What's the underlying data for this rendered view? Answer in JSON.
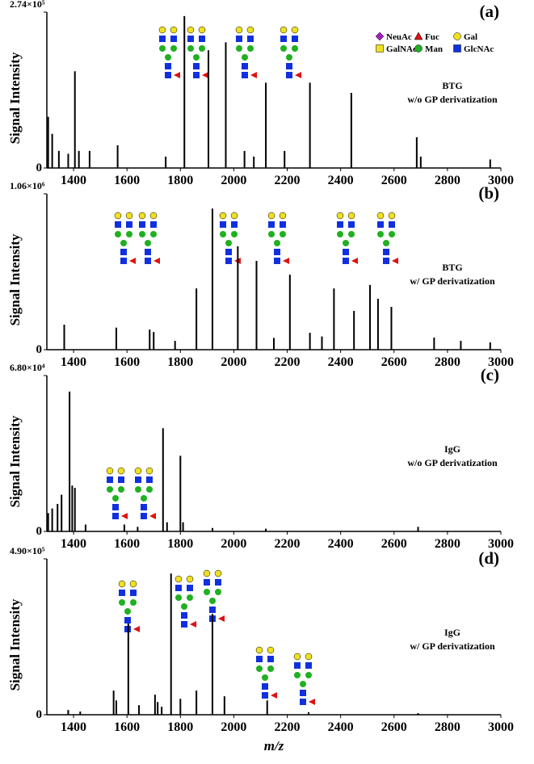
{
  "chart_data": [
    {
      "type": "stem",
      "panel_label": "(a)",
      "ylabel": "Signal Intensity",
      "annotation": [
        "BTG",
        "w/o GP derivatization"
      ],
      "legend": [
        {
          "name": "NeuAc",
          "color": "#a020c0",
          "shape": "diamond"
        },
        {
          "name": "Fuc",
          "color": "#e01010",
          "shape": "triangle"
        },
        {
          "name": "Gal",
          "color": "#f0e020",
          "shape": "circle"
        },
        {
          "name": "GalNAc",
          "color": "#f0e020",
          "shape": "square"
        },
        {
          "name": "Man",
          "color": "#20b020",
          "shape": "circle"
        },
        {
          "name": "GlcNAc",
          "color": "#1030e0",
          "shape": "square"
        }
      ],
      "color": "#000000",
      "xlim": [
        1300,
        3000
      ],
      "ylim": [
        0,
        274000
      ],
      "xticks": [
        1400,
        1600,
        1800,
        2000,
        2200,
        2400,
        2600,
        2800,
        3000
      ],
      "yticks": [
        0,
        {
          "value": 274000,
          "label": "2.74×10⁵"
        }
      ],
      "x": [
        1305,
        1320,
        1345,
        1380,
        1405,
        1420,
        1460,
        1565,
        1745,
        1815,
        1905,
        1970,
        2040,
        2075,
        2120,
        2190,
        2285,
        2440,
        2685,
        2700,
        2960
      ],
      "values": [
        90000,
        60000,
        30000,
        25000,
        170000,
        30000,
        30000,
        40000,
        20000,
        267000,
        207000,
        221000,
        30000,
        20000,
        150000,
        30000,
        150000,
        132000,
        54000,
        20000,
        15000
      ]
    },
    {
      "type": "stem",
      "panel_label": "(b)",
      "ylabel": "Signal Intensity",
      "annotation": [
        "BTG",
        "w/ GP derivatization"
      ],
      "color": "#000000",
      "xlim": [
        1300,
        3000
      ],
      "ylim": [
        0,
        1060000
      ],
      "xticks": [
        1400,
        1600,
        1800,
        2000,
        2200,
        2400,
        2600,
        2800,
        3000
      ],
      "yticks": [
        0,
        {
          "value": 1060000,
          "label": "1.06×10⁶"
        }
      ],
      "x": [
        1365,
        1560,
        1685,
        1700,
        1780,
        1860,
        1920,
        2015,
        2085,
        2150,
        2210,
        2285,
        2330,
        2375,
        2450,
        2510,
        2540,
        2590,
        2750,
        2850,
        2960
      ],
      "values": [
        170000,
        150000,
        137000,
        120000,
        60000,
        417000,
        960000,
        703000,
        604000,
        80000,
        510000,
        115000,
        90000,
        417000,
        264000,
        440000,
        346000,
        291000,
        82000,
        60000,
        50000
      ]
    },
    {
      "type": "stem",
      "panel_label": "(c)",
      "ylabel": "Signal Intensity",
      "annotation": [
        "IgG",
        "w/o GP derivatization"
      ],
      "color": "#000000",
      "xlim": [
        1300,
        3000
      ],
      "ylim": [
        0,
        68000
      ],
      "xticks": [
        1400,
        1600,
        1800,
        2000,
        2200,
        2400,
        2600,
        2800,
        3000
      ],
      "yticks": [
        0,
        {
          "value": 68000,
          "label": "6.80×10⁴"
        }
      ],
      "x": [
        1305,
        1320,
        1340,
        1355,
        1385,
        1395,
        1405,
        1445,
        1590,
        1640,
        1735,
        1750,
        1800,
        1810,
        1920,
        2120,
        2690
      ],
      "values": [
        8000,
        10000,
        12000,
        16000,
        61000,
        20000,
        19000,
        3000,
        3000,
        2000,
        45000,
        4000,
        33000,
        4000,
        1500,
        1200,
        2000
      ]
    },
    {
      "type": "stem",
      "panel_label": "(d)",
      "ylabel": "Signal Intensity",
      "annotation": [
        "IgG",
        "w/ GP derivatization"
      ],
      "xlabel": "m/z",
      "color": "#000000",
      "xlim": [
        1300,
        3000
      ],
      "ylim": [
        0,
        490000
      ],
      "xticks": [
        1400,
        1600,
        1800,
        2000,
        2200,
        2400,
        2600,
        2800,
        3000
      ],
      "yticks": [
        0,
        {
          "value": 490000,
          "label": "4.90×10⁵"
        }
      ],
      "x": [
        1380,
        1425,
        1550,
        1560,
        1605,
        1645,
        1705,
        1715,
        1730,
        1765,
        1800,
        1860,
        1920,
        1965,
        2125,
        2280,
        2690
      ],
      "values": [
        15000,
        10000,
        76000,
        45000,
        287000,
        30000,
        63000,
        40000,
        25000,
        444000,
        50000,
        76000,
        317000,
        58000,
        45000,
        8000,
        5000
      ]
    }
  ]
}
